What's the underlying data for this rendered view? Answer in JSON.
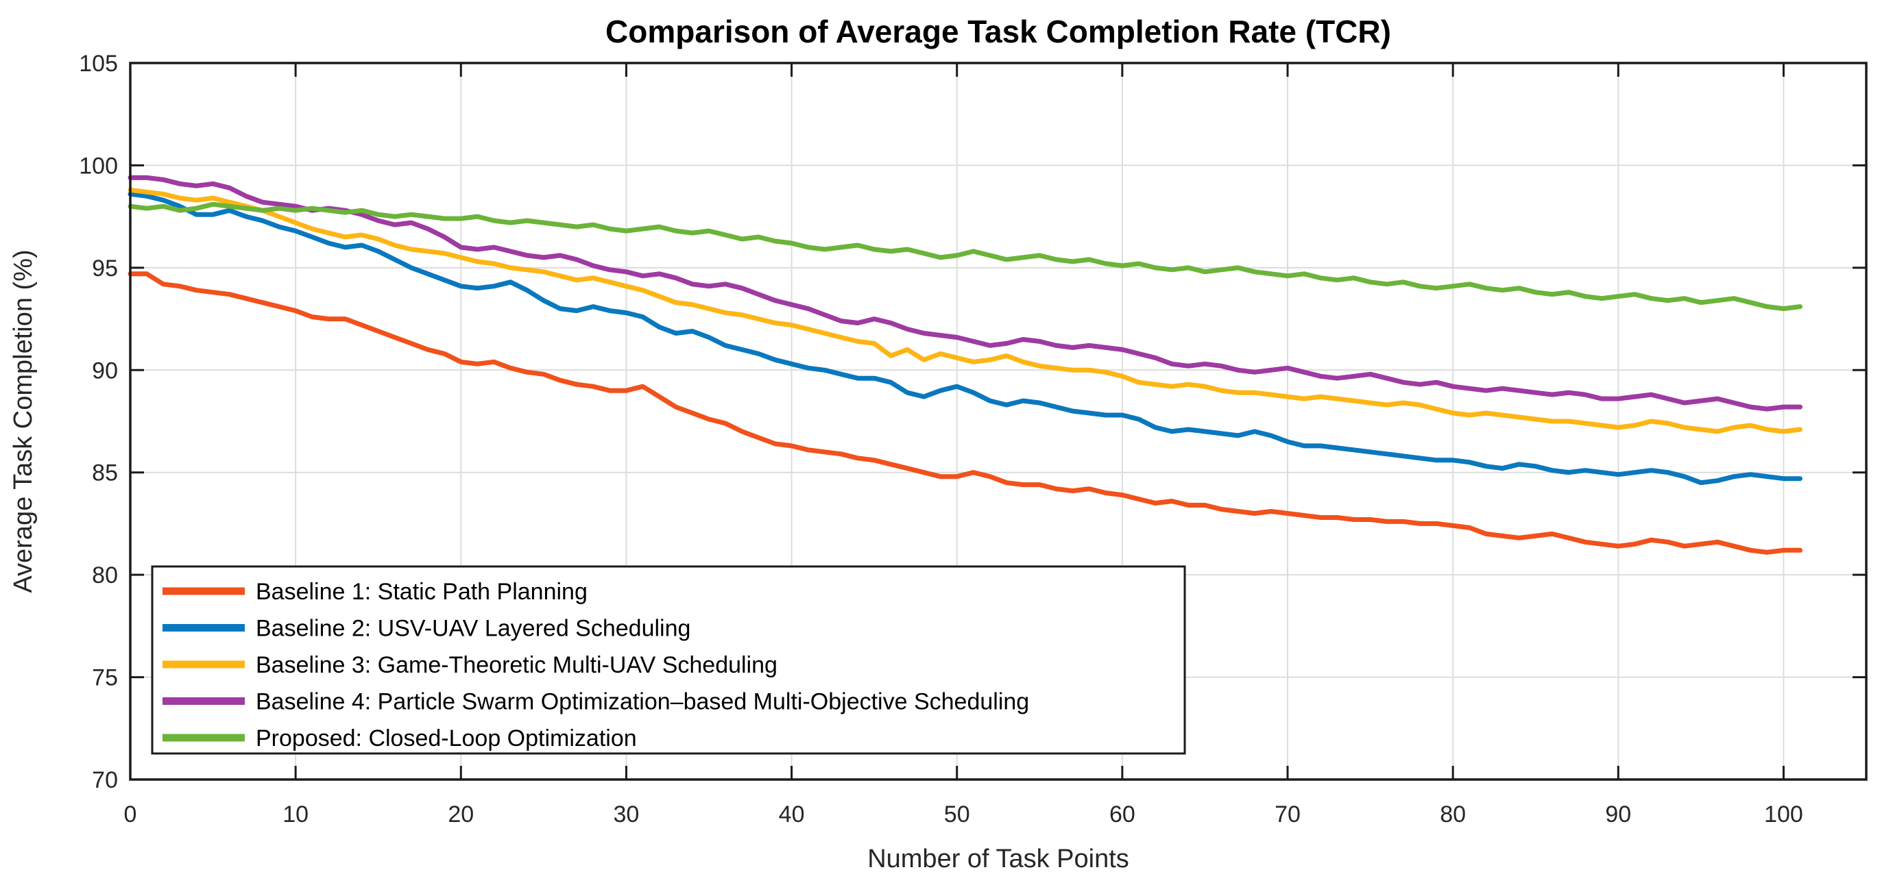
{
  "figure": {
    "title": "Comparison of Average Task Completion Rate (TCR)",
    "xlabel": "Number of Task Points",
    "ylabel": "Average Task Completion (%)"
  },
  "colors": {
    "background": "#FFFFFF",
    "axis": "#1A1A1A",
    "grid": "#DCDCDC",
    "tick_label": "#262626",
    "legend_border": "#1A1A1A"
  },
  "chart_data": {
    "type": "line",
    "title": "Comparison of Average Task Completion Rate (TCR)",
    "xlabel": "Number of Task Points",
    "ylabel": "Average Task Completion (%)",
    "xlim": [
      0,
      105
    ],
    "ylim": [
      70,
      105
    ],
    "xticks": [
      0,
      10,
      20,
      30,
      40,
      50,
      60,
      70,
      80,
      90,
      100
    ],
    "yticks": [
      70,
      75,
      80,
      85,
      90,
      95,
      100,
      105
    ],
    "grid": true,
    "legend_position": "lower-left",
    "x": [
      0,
      1,
      2,
      3,
      4,
      5,
      6,
      7,
      8,
      9,
      10,
      11,
      12,
      13,
      14,
      15,
      16,
      17,
      18,
      19,
      20,
      21,
      22,
      23,
      24,
      25,
      26,
      27,
      28,
      29,
      30,
      31,
      32,
      33,
      34,
      35,
      36,
      37,
      38,
      39,
      40,
      41,
      42,
      43,
      44,
      45,
      46,
      47,
      48,
      49,
      50,
      51,
      52,
      53,
      54,
      55,
      56,
      57,
      58,
      59,
      60,
      61,
      62,
      63,
      64,
      65,
      66,
      67,
      68,
      69,
      70,
      71,
      72,
      73,
      74,
      75,
      76,
      77,
      78,
      79,
      80,
      81,
      82,
      83,
      84,
      85,
      86,
      87,
      88,
      89,
      90,
      91,
      92,
      93,
      94,
      95,
      96,
      97,
      98,
      99,
      100,
      101
    ],
    "series": [
      {
        "name": "Baseline 1: Static Path Planning",
        "color": "#F1511B",
        "values": [
          94.7,
          94.7,
          94.2,
          94.1,
          93.9,
          93.8,
          93.7,
          93.5,
          93.3,
          93.1,
          92.9,
          92.6,
          92.5,
          92.5,
          92.2,
          91.9,
          91.6,
          91.3,
          91.0,
          90.8,
          90.4,
          90.3,
          90.4,
          90.1,
          89.9,
          89.8,
          89.5,
          89.3,
          89.2,
          89.0,
          89.0,
          89.2,
          88.7,
          88.2,
          87.9,
          87.6,
          87.4,
          87.0,
          86.7,
          86.4,
          86.3,
          86.1,
          86.0,
          85.9,
          85.7,
          85.6,
          85.4,
          85.2,
          85.0,
          84.8,
          84.8,
          85.0,
          84.8,
          84.5,
          84.4,
          84.4,
          84.2,
          84.1,
          84.2,
          84.0,
          83.9,
          83.7,
          83.5,
          83.6,
          83.4,
          83.4,
          83.2,
          83.1,
          83.0,
          83.1,
          83.0,
          82.9,
          82.8,
          82.8,
          82.7,
          82.7,
          82.6,
          82.6,
          82.5,
          82.5,
          82.4,
          82.3,
          82.0,
          81.9,
          81.8,
          81.9,
          82.0,
          81.8,
          81.6,
          81.5,
          81.4,
          81.5,
          81.7,
          81.6,
          81.4,
          81.5,
          81.6,
          81.4,
          81.2,
          81.1,
          81.2,
          81.2
        ]
      },
      {
        "name": "Baseline 2: USV-UAV Layered Scheduling",
        "color": "#0A78BE",
        "values": [
          98.6,
          98.5,
          98.3,
          98.0,
          97.6,
          97.6,
          97.8,
          97.5,
          97.3,
          97.0,
          96.8,
          96.5,
          96.2,
          96.0,
          96.1,
          95.8,
          95.4,
          95.0,
          94.7,
          94.4,
          94.1,
          94.0,
          94.1,
          94.3,
          93.9,
          93.4,
          93.0,
          92.9,
          93.1,
          92.9,
          92.8,
          92.6,
          92.1,
          91.8,
          91.9,
          91.6,
          91.2,
          91.0,
          90.8,
          90.5,
          90.3,
          90.1,
          90.0,
          89.8,
          89.6,
          89.6,
          89.4,
          88.9,
          88.7,
          89.0,
          89.2,
          88.9,
          88.5,
          88.3,
          88.5,
          88.4,
          88.2,
          88.0,
          87.9,
          87.8,
          87.8,
          87.6,
          87.2,
          87.0,
          87.1,
          87.0,
          86.9,
          86.8,
          87.0,
          86.8,
          86.5,
          86.3,
          86.3,
          86.2,
          86.1,
          86.0,
          85.9,
          85.8,
          85.7,
          85.6,
          85.6,
          85.5,
          85.3,
          85.2,
          85.4,
          85.3,
          85.1,
          85.0,
          85.1,
          85.0,
          84.9,
          85.0,
          85.1,
          85.0,
          84.8,
          84.5,
          84.6,
          84.8,
          84.9,
          84.8,
          84.7,
          84.7
        ]
      },
      {
        "name": "Baseline 3: Game-Theoretic Multi-UAV Scheduling",
        "color": "#FDB515",
        "values": [
          98.8,
          98.7,
          98.6,
          98.4,
          98.3,
          98.4,
          98.2,
          98.0,
          97.8,
          97.5,
          97.2,
          96.9,
          96.7,
          96.5,
          96.6,
          96.4,
          96.1,
          95.9,
          95.8,
          95.7,
          95.5,
          95.3,
          95.2,
          95.0,
          94.9,
          94.8,
          94.6,
          94.4,
          94.5,
          94.3,
          94.1,
          93.9,
          93.6,
          93.3,
          93.2,
          93.0,
          92.8,
          92.7,
          92.5,
          92.3,
          92.2,
          92.0,
          91.8,
          91.6,
          91.4,
          91.3,
          90.7,
          91.0,
          90.5,
          90.8,
          90.6,
          90.4,
          90.5,
          90.7,
          90.4,
          90.2,
          90.1,
          90.0,
          90.0,
          89.9,
          89.7,
          89.4,
          89.3,
          89.2,
          89.3,
          89.2,
          89.0,
          88.9,
          88.9,
          88.8,
          88.7,
          88.6,
          88.7,
          88.6,
          88.5,
          88.4,
          88.3,
          88.4,
          88.3,
          88.1,
          87.9,
          87.8,
          87.9,
          87.8,
          87.7,
          87.6,
          87.5,
          87.5,
          87.4,
          87.3,
          87.2,
          87.3,
          87.5,
          87.4,
          87.2,
          87.1,
          87.0,
          87.2,
          87.3,
          87.1,
          87.0,
          87.1
        ]
      },
      {
        "name": "Baseline 4: Particle Swarm Optimization–based Multi-Objective Scheduling",
        "color": "#9E3AA2",
        "values": [
          99.4,
          99.4,
          99.3,
          99.1,
          99.0,
          99.1,
          98.9,
          98.5,
          98.2,
          98.1,
          98.0,
          97.8,
          97.9,
          97.8,
          97.6,
          97.3,
          97.1,
          97.2,
          96.9,
          96.5,
          96.0,
          95.9,
          96.0,
          95.8,
          95.6,
          95.5,
          95.6,
          95.4,
          95.1,
          94.9,
          94.8,
          94.6,
          94.7,
          94.5,
          94.2,
          94.1,
          94.2,
          94.0,
          93.7,
          93.4,
          93.2,
          93.0,
          92.7,
          92.4,
          92.3,
          92.5,
          92.3,
          92.0,
          91.8,
          91.7,
          91.6,
          91.4,
          91.2,
          91.3,
          91.5,
          91.4,
          91.2,
          91.1,
          91.2,
          91.1,
          91.0,
          90.8,
          90.6,
          90.3,
          90.2,
          90.3,
          90.2,
          90.0,
          89.9,
          90.0,
          90.1,
          89.9,
          89.7,
          89.6,
          89.7,
          89.8,
          89.6,
          89.4,
          89.3,
          89.4,
          89.2,
          89.1,
          89.0,
          89.1,
          89.0,
          88.9,
          88.8,
          88.9,
          88.8,
          88.6,
          88.6,
          88.7,
          88.8,
          88.6,
          88.4,
          88.5,
          88.6,
          88.4,
          88.2,
          88.1,
          88.2,
          88.2
        ]
      },
      {
        "name": "Proposed: Closed-Loop Optimization",
        "color": "#6CB33A",
        "values": [
          98.0,
          97.9,
          98.0,
          97.8,
          97.9,
          98.1,
          98.0,
          97.9,
          97.8,
          97.9,
          97.8,
          97.9,
          97.8,
          97.7,
          97.8,
          97.6,
          97.5,
          97.6,
          97.5,
          97.4,
          97.4,
          97.5,
          97.3,
          97.2,
          97.3,
          97.2,
          97.1,
          97.0,
          97.1,
          96.9,
          96.8,
          96.9,
          97.0,
          96.8,
          96.7,
          96.8,
          96.6,
          96.4,
          96.5,
          96.3,
          96.2,
          96.0,
          95.9,
          96.0,
          96.1,
          95.9,
          95.8,
          95.9,
          95.7,
          95.5,
          95.6,
          95.8,
          95.6,
          95.4,
          95.5,
          95.6,
          95.4,
          95.3,
          95.4,
          95.2,
          95.1,
          95.2,
          95.0,
          94.9,
          95.0,
          94.8,
          94.9,
          95.0,
          94.8,
          94.7,
          94.6,
          94.7,
          94.5,
          94.4,
          94.5,
          94.3,
          94.2,
          94.3,
          94.1,
          94.0,
          94.1,
          94.2,
          94.0,
          93.9,
          94.0,
          93.8,
          93.7,
          93.8,
          93.6,
          93.5,
          93.6,
          93.7,
          93.5,
          93.4,
          93.5,
          93.3,
          93.4,
          93.5,
          93.3,
          93.1,
          93.0,
          93.1
        ]
      }
    ]
  }
}
